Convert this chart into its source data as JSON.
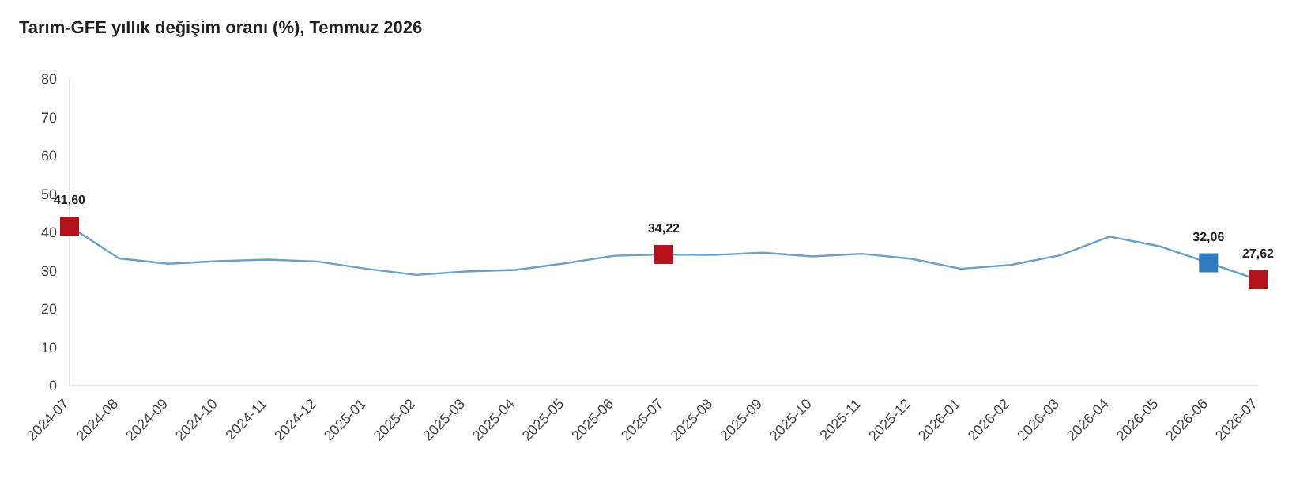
{
  "chart_data": {
    "type": "line",
    "title": "Tarım-GFE yıllık değişim oranı (%), Temmuz 2026",
    "categories": [
      "2024-07",
      "2024-08",
      "2024-09",
      "2024-10",
      "2024-11",
      "2024-12",
      "2025-01",
      "2025-02",
      "2025-03",
      "2025-04",
      "2025-05",
      "2025-06",
      "2025-07",
      "2025-08",
      "2025-09",
      "2025-10",
      "2025-11",
      "2025-12",
      "2026-01",
      "2026-02",
      "2026-03",
      "2026-04",
      "2026-05",
      "2026-06",
      "2026-07"
    ],
    "series": [
      {
        "color": "#6a9fc9",
        "values": [
          41.6,
          33.2,
          31.8,
          32.5,
          32.9,
          32.4,
          30.5,
          28.9,
          29.8,
          30.2,
          31.9,
          33.9,
          34.22,
          34.1,
          34.7,
          33.7,
          34.4,
          33.1,
          30.5,
          31.5,
          34.0,
          38.9,
          36.4,
          32.06,
          27.62
        ]
      },
      {
        "type": "scatter",
        "marker": "square",
        "values": [
          41.6,
          null,
          null,
          null,
          null,
          null,
          null,
          null,
          null,
          null,
          null,
          null,
          34.22,
          null,
          null,
          null,
          null,
          null,
          null,
          null,
          null,
          null,
          null,
          32.06,
          27.62
        ],
        "colors": [
          "#b5121b",
          null,
          null,
          null,
          null,
          null,
          null,
          null,
          null,
          null,
          null,
          null,
          "#b5121b",
          null,
          null,
          null,
          null,
          null,
          null,
          null,
          null,
          null,
          null,
          "#2e7bbf",
          "#b5121b"
        ],
        "value_labels": [
          "41,60",
          null,
          null,
          null,
          null,
          null,
          null,
          null,
          null,
          null,
          null,
          null,
          "34,22",
          null,
          null,
          null,
          null,
          null,
          null,
          null,
          null,
          null,
          null,
          "32,06",
          "27,62"
        ]
      }
    ],
    "ylim": [
      0,
      80
    ],
    "yticks": [
      0,
      10,
      20,
      30,
      40,
      50,
      60,
      70,
      80
    ],
    "grid": false,
    "line_style": "solid"
  }
}
